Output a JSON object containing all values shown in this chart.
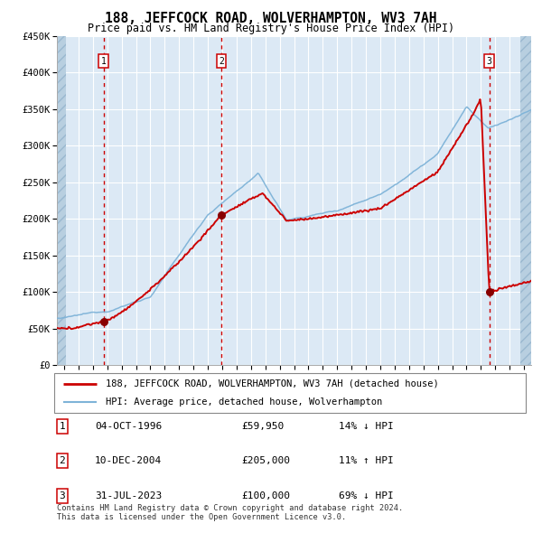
{
  "title": "188, JEFFCOCK ROAD, WOLVERHAMPTON, WV3 7AH",
  "subtitle": "Price paid vs. HM Land Registry's House Price Index (HPI)",
  "legend_line1": "188, JEFFCOCK ROAD, WOLVERHAMPTON, WV3 7AH (detached house)",
  "legend_line2": "HPI: Average price, detached house, Wolverhampton",
  "sale1_year": 1996.75,
  "sale1_price": 59950,
  "sale2_year": 2004.94,
  "sale2_price": 205000,
  "sale3_year": 2023.58,
  "sale3_price": 100000,
  "hpi_color": "#7eb3d8",
  "price_color": "#cc0000",
  "dot_color": "#880000",
  "vline_color": "#cc0000",
  "plot_bg": "#dce9f5",
  "grid_color": "#ffffff",
  "hatch_color": "#b8cfe0",
  "ylim": [
    0,
    450000
  ],
  "yticks": [
    0,
    50000,
    100000,
    150000,
    200000,
    250000,
    300000,
    350000,
    400000,
    450000
  ],
  "xlim_start": 1993.5,
  "xlim_end": 2026.5,
  "sale_rows": [
    [
      "1",
      "04-OCT-1996",
      "£59,950",
      "14% ↓ HPI"
    ],
    [
      "2",
      "10-DEC-2004",
      "£205,000",
      "11% ↑ HPI"
    ],
    [
      "3",
      "31-JUL-2023",
      "£100,000",
      "69% ↓ HPI"
    ]
  ],
  "footer": "Contains HM Land Registry data © Crown copyright and database right 2024.\nThis data is licensed under the Open Government Licence v3.0."
}
